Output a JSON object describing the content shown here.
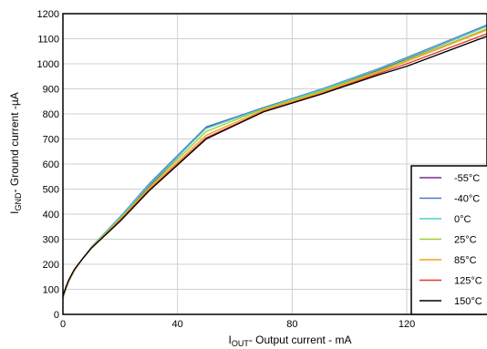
{
  "chart_data": {
    "type": "line",
    "xlabel": {
      "main": "I",
      "sub": "OUT",
      "rest": "- Output current - mA"
    },
    "ylabel": {
      "main": "I",
      "sub": "GND",
      "rest": "- Ground current -µA"
    },
    "xlim": [
      0,
      148
    ],
    "ylim": [
      0,
      1200
    ],
    "xticks": [
      0,
      40,
      80,
      120
    ],
    "yticks": [
      0,
      100,
      200,
      300,
      400,
      500,
      600,
      700,
      800,
      900,
      1000,
      1100,
      1200
    ],
    "grid": true,
    "legend_position": "bottom-right",
    "series": [
      {
        "name": "-55°C",
        "color": "#7b2d8e",
        "points": [
          [
            0,
            65
          ],
          [
            1,
            100
          ],
          [
            2,
            130
          ],
          [
            4,
            175
          ],
          [
            7,
            225
          ],
          [
            10,
            270
          ],
          [
            20,
            385
          ],
          [
            30,
            510
          ],
          [
            50,
            745
          ],
          [
            70,
            825
          ],
          [
            90,
            895
          ],
          [
            110,
            975
          ],
          [
            120,
            1020
          ],
          [
            148,
            1150
          ]
        ]
      },
      {
        "name": "-40°C",
        "color": "#4a78c8",
        "points": [
          [
            0,
            65
          ],
          [
            1,
            100
          ],
          [
            2,
            130
          ],
          [
            4,
            175
          ],
          [
            7,
            225
          ],
          [
            10,
            270
          ],
          [
            20,
            390
          ],
          [
            30,
            520
          ],
          [
            50,
            748
          ],
          [
            70,
            825
          ],
          [
            90,
            898
          ],
          [
            110,
            980
          ],
          [
            120,
            1025
          ],
          [
            148,
            1155
          ]
        ]
      },
      {
        "name": "0°C",
        "color": "#4fd0cc",
        "points": [
          [
            0,
            65
          ],
          [
            1,
            100
          ],
          [
            2,
            130
          ],
          [
            4,
            175
          ],
          [
            7,
            225
          ],
          [
            10,
            270
          ],
          [
            20,
            388
          ],
          [
            30,
            515
          ],
          [
            50,
            742
          ],
          [
            70,
            822
          ],
          [
            90,
            895
          ],
          [
            110,
            978
          ],
          [
            120,
            1022
          ],
          [
            148,
            1150
          ]
        ]
      },
      {
        "name": "25°C",
        "color": "#9ad127",
        "points": [
          [
            0,
            68
          ],
          [
            1,
            102
          ],
          [
            2,
            132
          ],
          [
            4,
            176
          ],
          [
            7,
            224
          ],
          [
            10,
            268
          ],
          [
            20,
            382
          ],
          [
            30,
            505
          ],
          [
            50,
            730
          ],
          [
            70,
            820
          ],
          [
            90,
            890
          ],
          [
            110,
            970
          ],
          [
            120,
            1015
          ],
          [
            148,
            1140
          ]
        ]
      },
      {
        "name": "85°C",
        "color": "#f0a020",
        "points": [
          [
            0,
            70
          ],
          [
            1,
            103
          ],
          [
            2,
            133
          ],
          [
            4,
            177
          ],
          [
            7,
            224
          ],
          [
            10,
            266
          ],
          [
            20,
            378
          ],
          [
            30,
            500
          ],
          [
            50,
            715
          ],
          [
            70,
            815
          ],
          [
            90,
            885
          ],
          [
            110,
            965
          ],
          [
            120,
            1010
          ],
          [
            148,
            1135
          ]
        ]
      },
      {
        "name": "125°C",
        "color": "#e03a30",
        "points": [
          [
            0,
            72
          ],
          [
            1,
            105
          ],
          [
            2,
            135
          ],
          [
            4,
            178
          ],
          [
            7,
            224
          ],
          [
            10,
            265
          ],
          [
            20,
            375
          ],
          [
            30,
            495
          ],
          [
            50,
            705
          ],
          [
            70,
            810
          ],
          [
            90,
            880
          ],
          [
            110,
            960
          ],
          [
            120,
            1000
          ],
          [
            148,
            1120
          ]
        ]
      },
      {
        "name": "150°C",
        "color": "#000000",
        "points": [
          [
            0,
            75
          ],
          [
            1,
            108
          ],
          [
            2,
            137
          ],
          [
            4,
            180
          ],
          [
            7,
            224
          ],
          [
            10,
            265
          ],
          [
            20,
            372
          ],
          [
            30,
            492
          ],
          [
            50,
            700
          ],
          [
            70,
            808
          ],
          [
            90,
            878
          ],
          [
            110,
            955
          ],
          [
            120,
            990
          ],
          [
            148,
            1110
          ]
        ]
      }
    ]
  }
}
